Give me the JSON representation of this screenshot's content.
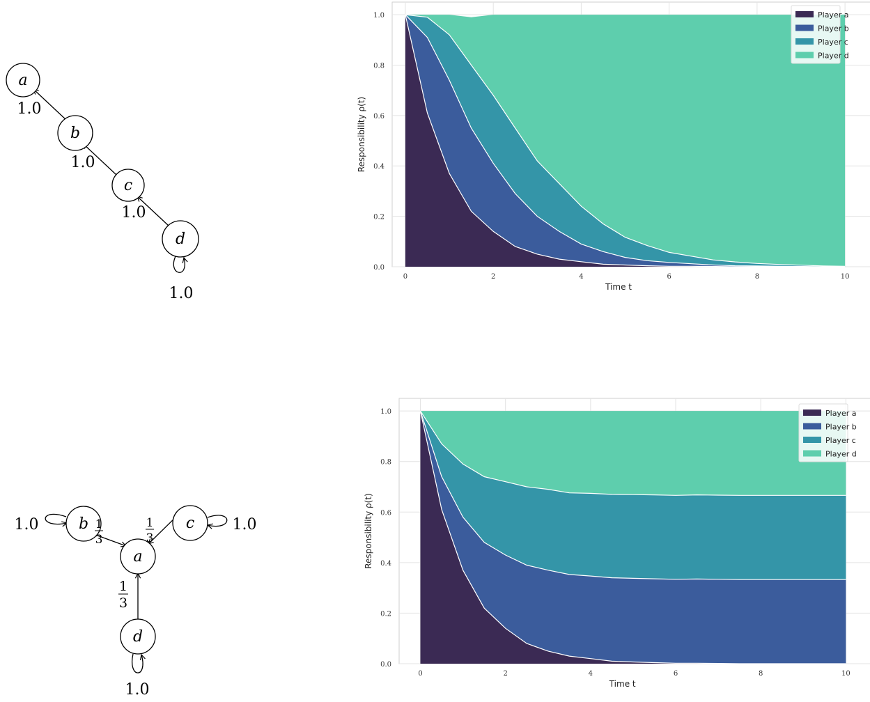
{
  "graphs": [
    {
      "nodes": [
        {
          "label": "a"
        },
        {
          "label": "b"
        },
        {
          "label": "c"
        },
        {
          "label": "d"
        }
      ],
      "edges": [
        {
          "from": "b",
          "to": "a",
          "label": "1.0"
        },
        {
          "from": "c",
          "to": "b",
          "label": "1.0"
        },
        {
          "from": "d",
          "to": "c",
          "label": "1.0"
        },
        {
          "from": "d",
          "to": "d",
          "label": "1.0"
        }
      ]
    },
    {
      "nodes": [
        {
          "label": "a"
        },
        {
          "label": "b"
        },
        {
          "label": "c"
        },
        {
          "label": "d"
        }
      ],
      "edges": [
        {
          "from": "b",
          "to": "a",
          "label_num": "1",
          "label_den": "3"
        },
        {
          "from": "c",
          "to": "a",
          "label_num": "1",
          "label_den": "3"
        },
        {
          "from": "d",
          "to": "a",
          "label_num": "1",
          "label_den": "3"
        },
        {
          "from": "b",
          "to": "b",
          "label": "1.0"
        },
        {
          "from": "c",
          "to": "c",
          "label": "1.0"
        },
        {
          "from": "d",
          "to": "d",
          "label": "1.0"
        }
      ]
    }
  ],
  "chart_data": [
    {
      "type": "area",
      "stacked": true,
      "xlabel": "Time t",
      "ylabel": "Responsibility ρ(t)",
      "xlim": [
        -0.3,
        10.6
      ],
      "ylim": [
        0,
        1.05
      ],
      "xticks": [
        "0",
        "2",
        "4",
        "6",
        "8",
        "10"
      ],
      "yticks": [
        "0.0",
        "0.2",
        "0.4",
        "0.6",
        "0.8",
        "1.0"
      ],
      "grid": true,
      "legend": "top-right",
      "x": [
        0,
        0.5,
        1,
        1.5,
        2,
        2.5,
        3,
        3.5,
        4,
        4.5,
        5,
        5.5,
        6,
        6.5,
        7,
        7.5,
        8,
        8.5,
        9,
        9.5,
        10
      ],
      "series": [
        {
          "name": "Player a",
          "color": "#3b2a54",
          "values": [
            1.0,
            0.61,
            0.37,
            0.22,
            0.14,
            0.08,
            0.05,
            0.03,
            0.02,
            0.01,
            0.007,
            0.004,
            0.002,
            0.002,
            0.001,
            0.0,
            0.0,
            0.0,
            0.0,
            0.0,
            0.0
          ]
        },
        {
          "name": "Player b",
          "color": "#3b5c9c",
          "values": [
            0.0,
            0.3,
            0.37,
            0.33,
            0.27,
            0.21,
            0.15,
            0.11,
            0.07,
            0.05,
            0.03,
            0.02,
            0.015,
            0.01,
            0.006,
            0.004,
            0.003,
            0.002,
            0.001,
            0.0,
            0.0
          ]
        },
        {
          "name": "Player c",
          "color": "#3495a8",
          "values": [
            0.0,
            0.08,
            0.18,
            0.25,
            0.27,
            0.26,
            0.22,
            0.19,
            0.15,
            0.11,
            0.08,
            0.06,
            0.04,
            0.03,
            0.02,
            0.015,
            0.01,
            0.007,
            0.005,
            0.003,
            0.002
          ]
        },
        {
          "name": "Player d",
          "color": "#5ecead",
          "values": [
            0.0,
            0.01,
            0.08,
            0.19,
            0.32,
            0.45,
            0.58,
            0.67,
            0.76,
            0.83,
            0.883,
            0.916,
            0.943,
            0.958,
            0.973,
            0.981,
            0.987,
            0.991,
            0.994,
            0.997,
            0.998
          ]
        }
      ]
    },
    {
      "type": "area",
      "stacked": true,
      "xlabel": "Time t",
      "ylabel": "Responsibility ρ(t)",
      "xlim": [
        -0.5,
        10.6
      ],
      "ylim": [
        0,
        1.05
      ],
      "xticks": [
        "0",
        "2",
        "4",
        "6",
        "8",
        "10"
      ],
      "yticks": [
        "0.0",
        "0.2",
        "0.4",
        "0.6",
        "0.8",
        "1.0"
      ],
      "grid": true,
      "legend": "top-right",
      "x": [
        0,
        0.5,
        1,
        1.5,
        2,
        2.5,
        3,
        3.5,
        4,
        4.5,
        5,
        5.5,
        6,
        6.5,
        7,
        7.5,
        8,
        8.5,
        9,
        9.5,
        10
      ],
      "series": [
        {
          "name": "Player a",
          "color": "#3b2a54",
          "values": [
            1.0,
            0.61,
            0.37,
            0.22,
            0.14,
            0.08,
            0.05,
            0.03,
            0.02,
            0.01,
            0.007,
            0.004,
            0.002,
            0.002,
            0.001,
            0.0,
            0.0,
            0.0,
            0.0,
            0.0,
            0.0
          ]
        },
        {
          "name": "Player b",
          "color": "#3b5c9c",
          "values": [
            0.0,
            0.13,
            0.21,
            0.26,
            0.29,
            0.31,
            0.32,
            0.323,
            0.327,
            0.33,
            0.331,
            0.332,
            0.332,
            0.333,
            0.333,
            0.333,
            0.333,
            0.333,
            0.333,
            0.333,
            0.333
          ]
        },
        {
          "name": "Player c",
          "color": "#3495a8",
          "values": [
            0.0,
            0.13,
            0.21,
            0.26,
            0.29,
            0.31,
            0.32,
            0.323,
            0.327,
            0.33,
            0.331,
            0.332,
            0.332,
            0.333,
            0.333,
            0.333,
            0.333,
            0.333,
            0.333,
            0.333,
            0.333
          ]
        },
        {
          "name": "Player d",
          "color": "#5ecead",
          "values": [
            0.0,
            0.13,
            0.21,
            0.26,
            0.28,
            0.3,
            0.31,
            0.324,
            0.326,
            0.33,
            0.331,
            0.332,
            0.334,
            0.332,
            0.333,
            0.334,
            0.334,
            0.334,
            0.334,
            0.334,
            0.334
          ]
        }
      ]
    }
  ]
}
